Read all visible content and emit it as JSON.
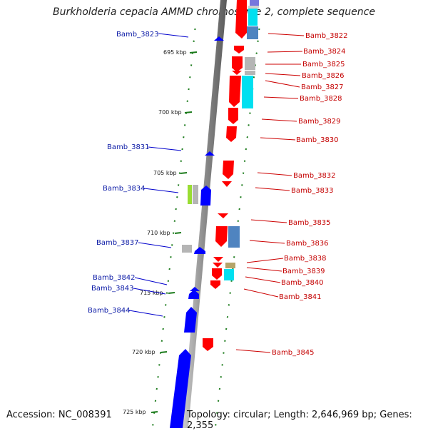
{
  "title": "Burkholderia cepacia AMMD chromosome 2, complete sequence",
  "accession": "Accession: NC_008391",
  "topology": "Topology: circular; Length: 2,646,969 bp; Genes: 2,355",
  "colors": {
    "forward": "#ff0000",
    "reverse": "#0000ff",
    "backbone": "#999999",
    "ticks": "#1a7a1a",
    "cyan": "#00e0f0",
    "steel": "#4f84c0",
    "gray": "#b5b5b5",
    "lime": "#99dd33",
    "khaki": "#b5a56a",
    "lavender": "#7777dd"
  },
  "kbp_marks": [
    {
      "kbp": 695,
      "label": "695 kbp"
    },
    {
      "kbp": 700,
      "label": "700 kbp"
    },
    {
      "kbp": 705,
      "label": "705 kbp"
    },
    {
      "kbp": 710,
      "label": "710 kbp"
    },
    {
      "kbp": 715,
      "label": "715 kbp"
    },
    {
      "kbp": 720,
      "label": "720 kbp"
    },
    {
      "kbp": 725,
      "label": "725 kbp"
    }
  ],
  "genes_left": [
    {
      "name": "Bamb_3823"
    },
    {
      "name": "Bamb_3831"
    },
    {
      "name": "Bamb_3834"
    },
    {
      "name": "Bamb_3837"
    },
    {
      "name": "Bamb_3842"
    },
    {
      "name": "Bamb_3843"
    },
    {
      "name": "Bamb_3844"
    }
  ],
  "genes_right": [
    {
      "name": "Bamb_3822"
    },
    {
      "name": "Bamb_3824"
    },
    {
      "name": "Bamb_3825"
    },
    {
      "name": "Bamb_3826"
    },
    {
      "name": "Bamb_3827"
    },
    {
      "name": "Bamb_3828"
    },
    {
      "name": "Bamb_3829"
    },
    {
      "name": "Bamb_3830"
    },
    {
      "name": "Bamb_3832"
    },
    {
      "name": "Bamb_3833"
    },
    {
      "name": "Bamb_3835"
    },
    {
      "name": "Bamb_3836"
    },
    {
      "name": "Bamb_3838"
    },
    {
      "name": "Bamb_3839"
    },
    {
      "name": "Bamb_3840"
    },
    {
      "name": "Bamb_3841"
    },
    {
      "name": "Bamb_3845"
    }
  ]
}
